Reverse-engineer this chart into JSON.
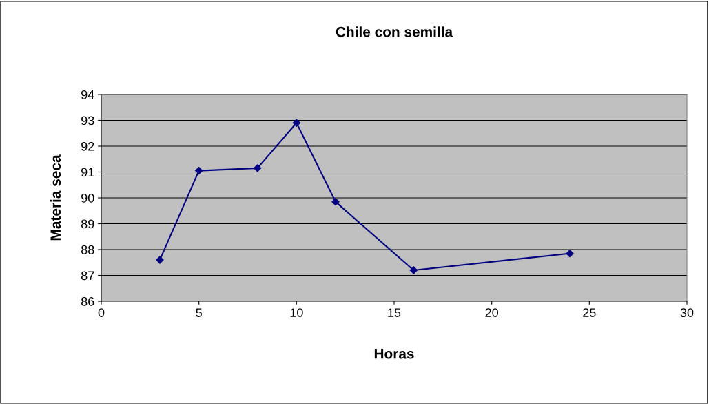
{
  "chart_data": {
    "type": "line",
    "title": "Chile con semilla",
    "xlabel": "Horas",
    "ylabel": "Materia seca",
    "x": [
      3,
      5,
      8,
      10,
      12,
      16,
      24
    ],
    "series": [
      {
        "color": "#000080",
        "values": [
          87.6,
          91.05,
          91.15,
          92.9,
          89.85,
          87.2,
          87.85
        ]
      }
    ],
    "xlim": [
      0,
      30
    ],
    "xticks": [
      0,
      5,
      10,
      15,
      20,
      25,
      30
    ],
    "ylim": [
      86,
      94
    ],
    "yticks": [
      86,
      87,
      88,
      89,
      90,
      91,
      92,
      93,
      94
    ],
    "grid": "y",
    "marker": "diamond",
    "line_style": "solid",
    "legend": false
  }
}
